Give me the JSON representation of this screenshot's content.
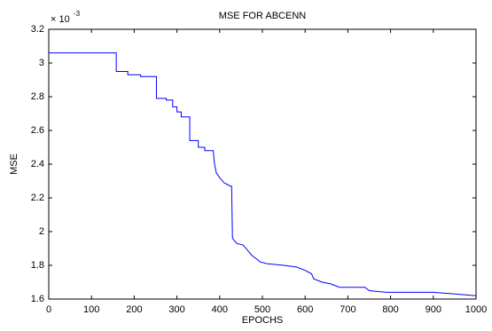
{
  "chart_data": {
    "type": "line",
    "title": "MSE FOR ABCENN",
    "x_label": "EPOCHS",
    "y_label": "MSE",
    "y_scale_base": "× 10",
    "y_scale_exponent": "-3",
    "x": [
      0,
      158,
      158,
      185,
      185,
      215,
      215,
      252,
      252,
      275,
      275,
      290,
      290,
      300,
      300,
      310,
      310,
      330,
      330,
      350,
      350,
      365,
      365,
      385,
      388,
      392,
      400,
      410,
      425,
      428,
      430,
      440,
      455,
      465,
      475,
      485,
      495,
      510,
      550,
      580,
      600,
      615,
      620,
      640,
      660,
      680,
      740,
      750,
      790,
      900,
      950,
      1000
    ],
    "series": [
      {
        "color": "#0000ff",
        "values": [
          3.06,
          3.06,
          2.95,
          2.95,
          2.93,
          2.93,
          2.92,
          2.92,
          2.79,
          2.79,
          2.78,
          2.78,
          2.74,
          2.74,
          2.71,
          2.71,
          2.68,
          2.68,
          2.54,
          2.54,
          2.5,
          2.5,
          2.48,
          2.48,
          2.4,
          2.35,
          2.32,
          2.29,
          2.27,
          2.27,
          1.96,
          1.93,
          1.92,
          1.89,
          1.86,
          1.84,
          1.82,
          1.81,
          1.8,
          1.79,
          1.77,
          1.75,
          1.72,
          1.7,
          1.69,
          1.67,
          1.67,
          1.65,
          1.64,
          1.64,
          1.63,
          1.62
        ]
      }
    ],
    "xlim": [
      0,
      1000
    ],
    "xticks": [
      0,
      100,
      200,
      300,
      400,
      500,
      600,
      700,
      800,
      900,
      1000
    ],
    "ylim": [
      1.6,
      3.2
    ],
    "yticks": [
      1.6,
      1.8,
      2,
      2.2,
      2.4,
      2.6,
      2.8,
      3,
      3.2
    ],
    "grid": false
  }
}
